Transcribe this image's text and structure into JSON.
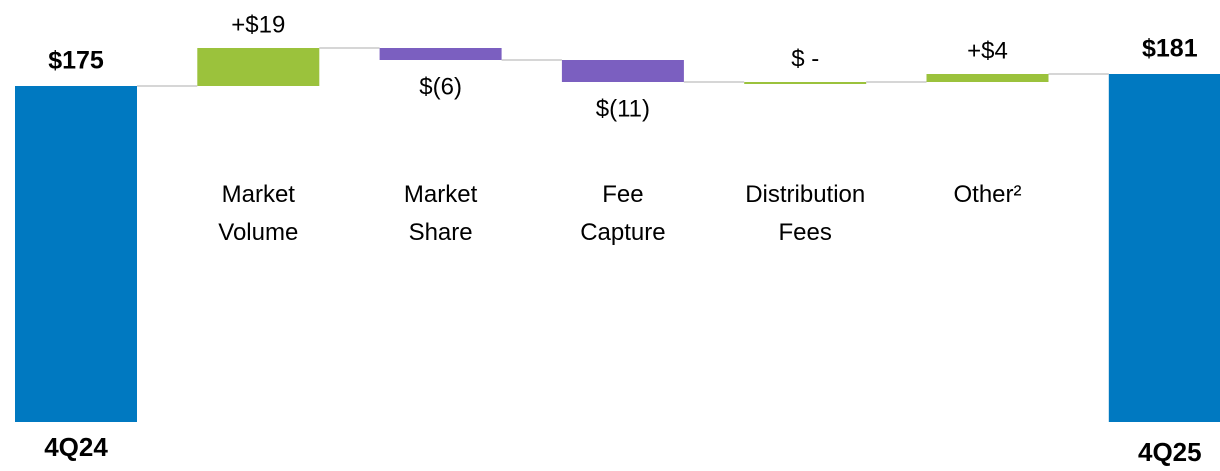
{
  "chart_data": {
    "type": "waterfall",
    "categories": [
      "4Q24",
      "Market Volume",
      "Market Share",
      "Fee Capture",
      "Distribution Fees",
      "Other²",
      "4Q25"
    ],
    "values": [
      175,
      19,
      -6,
      -11,
      0,
      4,
      181
    ],
    "value_labels": [
      "$175",
      "+$19",
      "$(6)",
      "$(11)",
      "$ -",
      "+$4",
      "$181"
    ],
    "colors": {
      "total": "#0079c1",
      "increase": "#9bc23c",
      "decrease": "#7b5fc0"
    }
  }
}
